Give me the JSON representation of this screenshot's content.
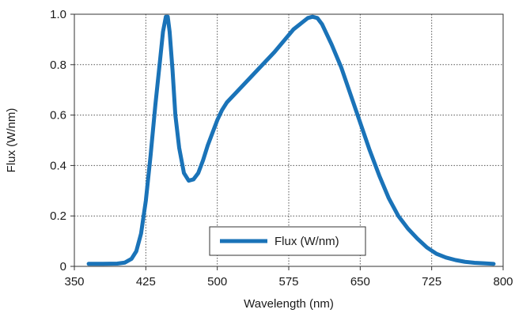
{
  "chart_data": {
    "type": "line",
    "xlabel": "Wavelength (nm)",
    "ylabel": "Flux (W/nm)",
    "xlim": [
      350,
      800
    ],
    "ylim": [
      0,
      1.0
    ],
    "x_ticks": [
      350,
      425,
      500,
      575,
      650,
      725,
      800
    ],
    "y_ticks": [
      0,
      0.2,
      0.4,
      0.6,
      0.8,
      1.0
    ],
    "x_tick_labels": [
      "350",
      "425",
      "500",
      "575",
      "650",
      "725",
      "800"
    ],
    "y_tick_labels": [
      "0",
      "0.2",
      "0.4",
      "0.6",
      "0.8",
      "1.0"
    ],
    "grid": true,
    "legend_position": "bottom-center",
    "series": [
      {
        "name": "Flux (W/nm)",
        "color": "#1a73b8",
        "x": [
          365,
          380,
          395,
          403,
          410,
          415,
          420,
          425,
          430,
          435,
          440,
          443,
          446,
          448,
          450,
          453,
          456,
          460,
          465,
          470,
          475,
          480,
          485,
          490,
          495,
          500,
          505,
          510,
          520,
          530,
          540,
          550,
          560,
          570,
          580,
          590,
          595,
          600,
          605,
          610,
          620,
          630,
          640,
          650,
          660,
          670,
          680,
          690,
          700,
          710,
          720,
          730,
          740,
          750,
          760,
          770,
          780,
          790
        ],
        "y": [
          0.01,
          0.01,
          0.011,
          0.015,
          0.03,
          0.06,
          0.13,
          0.26,
          0.44,
          0.64,
          0.82,
          0.93,
          0.99,
          0.99,
          0.93,
          0.78,
          0.6,
          0.47,
          0.37,
          0.34,
          0.345,
          0.37,
          0.42,
          0.48,
          0.53,
          0.58,
          0.62,
          0.65,
          0.69,
          0.73,
          0.77,
          0.81,
          0.85,
          0.895,
          0.94,
          0.97,
          0.985,
          0.99,
          0.985,
          0.96,
          0.88,
          0.79,
          0.68,
          0.57,
          0.46,
          0.36,
          0.27,
          0.2,
          0.15,
          0.11,
          0.075,
          0.05,
          0.035,
          0.025,
          0.018,
          0.014,
          0.012,
          0.01
        ]
      }
    ]
  }
}
